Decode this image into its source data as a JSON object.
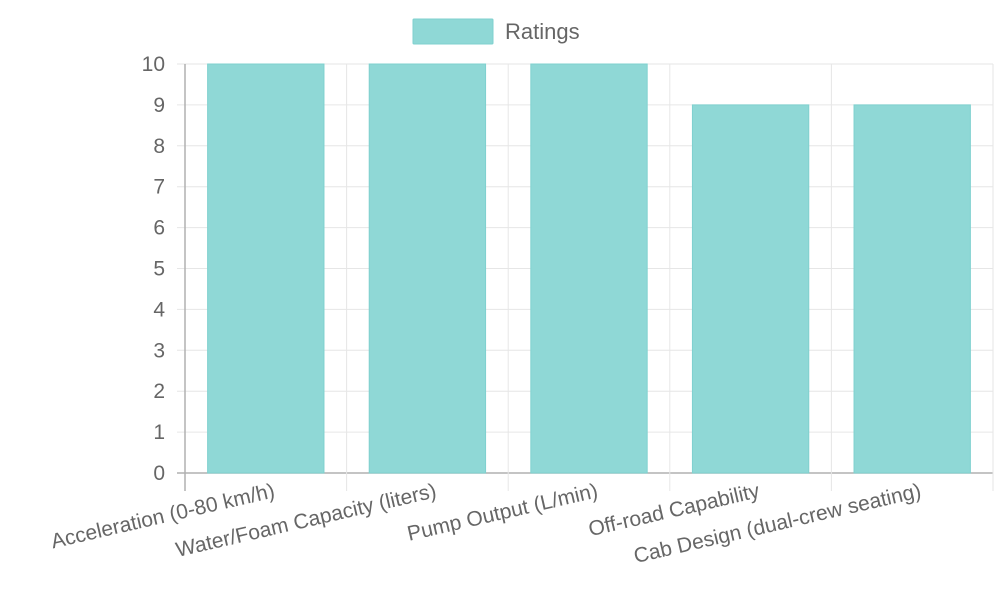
{
  "chart_data": {
    "type": "bar",
    "categories": [
      "Acceleration (0-80 km/h)",
      "Water/Foam Capacity (liters)",
      "Pump Output (L/min)",
      "Off-road Capability",
      "Cab Design (dual-crew seating)"
    ],
    "series": [
      {
        "name": "Ratings",
        "values": [
          10,
          10,
          10,
          9,
          9
        ]
      }
    ],
    "ylim": [
      0,
      10
    ],
    "yticks": [
      "0",
      "1",
      "2",
      "3",
      "4",
      "5",
      "6",
      "7",
      "8",
      "9",
      "10"
    ],
    "grid": true,
    "legend_position": "top",
    "colors": {
      "bar_fill": "#8fd8d6",
      "bar_stroke": "#7fd1cf",
      "grid": "#e6e6e6",
      "axis": "#b0b0b0",
      "text": "#666666"
    }
  }
}
